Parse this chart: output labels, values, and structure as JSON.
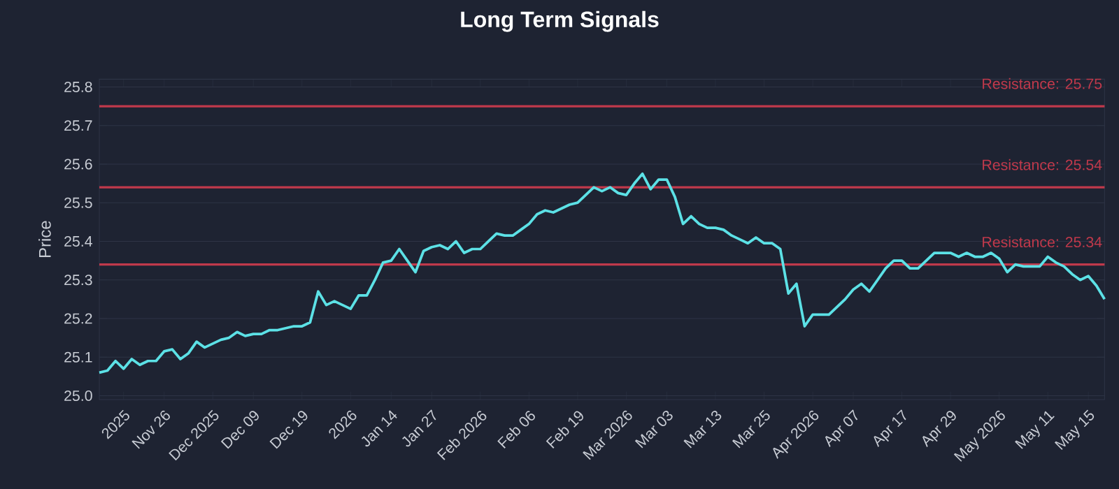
{
  "chart_data": {
    "type": "line",
    "title": "Long Term Signals",
    "ylabel": "Price",
    "categories": [
      null,
      null,
      null,
      "2025",
      null,
      null,
      null,
      null,
      "Nov 26",
      null,
      null,
      null,
      null,
      null,
      "Dec 2025",
      null,
      null,
      null,
      null,
      "Dec 09",
      null,
      null,
      null,
      null,
      null,
      "Dec 19",
      null,
      null,
      null,
      null,
      null,
      "2026",
      null,
      null,
      null,
      null,
      "Jan 14",
      null,
      null,
      null,
      null,
      "Jan 27",
      null,
      null,
      null,
      null,
      null,
      "Feb 2026",
      null,
      null,
      null,
      null,
      null,
      "Feb 06",
      null,
      null,
      null,
      null,
      null,
      "Feb 19",
      null,
      null,
      null,
      null,
      null,
      "Mar 2026",
      null,
      null,
      null,
      null,
      "Mar 03",
      null,
      null,
      null,
      null,
      null,
      "Mar 13",
      null,
      null,
      null,
      null,
      null,
      "Mar 25",
      null,
      null,
      null,
      null,
      null,
      "Apr 2026",
      null,
      null,
      null,
      null,
      "Apr 07",
      null,
      null,
      null,
      null,
      null,
      "Apr 17",
      null,
      null,
      null,
      null,
      null,
      "Apr 29",
      null,
      null,
      null,
      null,
      null,
      "May 2026",
      null,
      null,
      null,
      null,
      null,
      "May 11",
      null,
      null,
      null,
      null,
      "May 15",
      null,
      null
    ],
    "series": [
      {
        "color": "#5ce1e6",
        "values": [
          25.06,
          25.065,
          25.09,
          25.07,
          25.095,
          25.08,
          25.09,
          25.09,
          25.115,
          25.12,
          25.095,
          25.11,
          25.14,
          25.125,
          25.135,
          25.145,
          25.15,
          25.165,
          25.155,
          25.16,
          25.16,
          25.17,
          25.17,
          25.175,
          25.18,
          25.18,
          25.19,
          25.27,
          25.235,
          25.245,
          25.235,
          25.225,
          25.26,
          25.26,
          25.3,
          25.345,
          25.35,
          25.38,
          25.35,
          25.32,
          25.375,
          25.385,
          25.39,
          25.38,
          25.4,
          25.37,
          25.38,
          25.38,
          25.4,
          25.42,
          25.415,
          25.415,
          25.43,
          25.445,
          25.47,
          25.48,
          25.475,
          25.485,
          25.495,
          25.5,
          25.52,
          25.54,
          25.53,
          25.54,
          25.525,
          25.52,
          25.55,
          25.575,
          25.535,
          25.56,
          25.56,
          25.515,
          25.445,
          25.465,
          25.445,
          25.435,
          25.435,
          25.43,
          25.415,
          25.405,
          25.395,
          25.41,
          25.395,
          25.395,
          25.38,
          25.265,
          25.29,
          25.18,
          25.21,
          25.21,
          25.21,
          25.23,
          25.25,
          25.275,
          25.29,
          25.27,
          25.3,
          25.33,
          25.35,
          25.35,
          25.33,
          25.33,
          25.35,
          25.37,
          25.37,
          25.37,
          25.36,
          25.37,
          25.36,
          25.36,
          25.37,
          25.355,
          25.32,
          25.34,
          25.335,
          25.335,
          25.335,
          25.36,
          25.345,
          25.335,
          25.315,
          25.3,
          25.31,
          25.285,
          25.25
        ]
      }
    ],
    "ylim": [
      24.99,
      25.82
    ],
    "yticks": [
      {
        "value": 25.0,
        "label": "25.0"
      },
      {
        "value": 25.1,
        "label": "25.1"
      },
      {
        "value": 25.2,
        "label": "25.2"
      },
      {
        "value": 25.3,
        "label": "25.3"
      },
      {
        "value": 25.4,
        "label": "25.4"
      },
      {
        "value": 25.5,
        "label": "25.5"
      },
      {
        "value": 25.6,
        "label": "25.6"
      },
      {
        "value": 25.7,
        "label": "25.7"
      },
      {
        "value": 25.8,
        "label": "25.8"
      }
    ],
    "grid": "y",
    "ref_lines": [
      {
        "axis": "y",
        "value": 25.75,
        "label": "Resistance: 25.75",
        "color": "#c0394b"
      },
      {
        "axis": "y",
        "value": 25.54,
        "label": "Resistance: 25.54",
        "color": "#c0394b"
      },
      {
        "axis": "y",
        "value": 25.34,
        "label": "Resistance: 25.34",
        "color": "#c0394b"
      }
    ]
  }
}
